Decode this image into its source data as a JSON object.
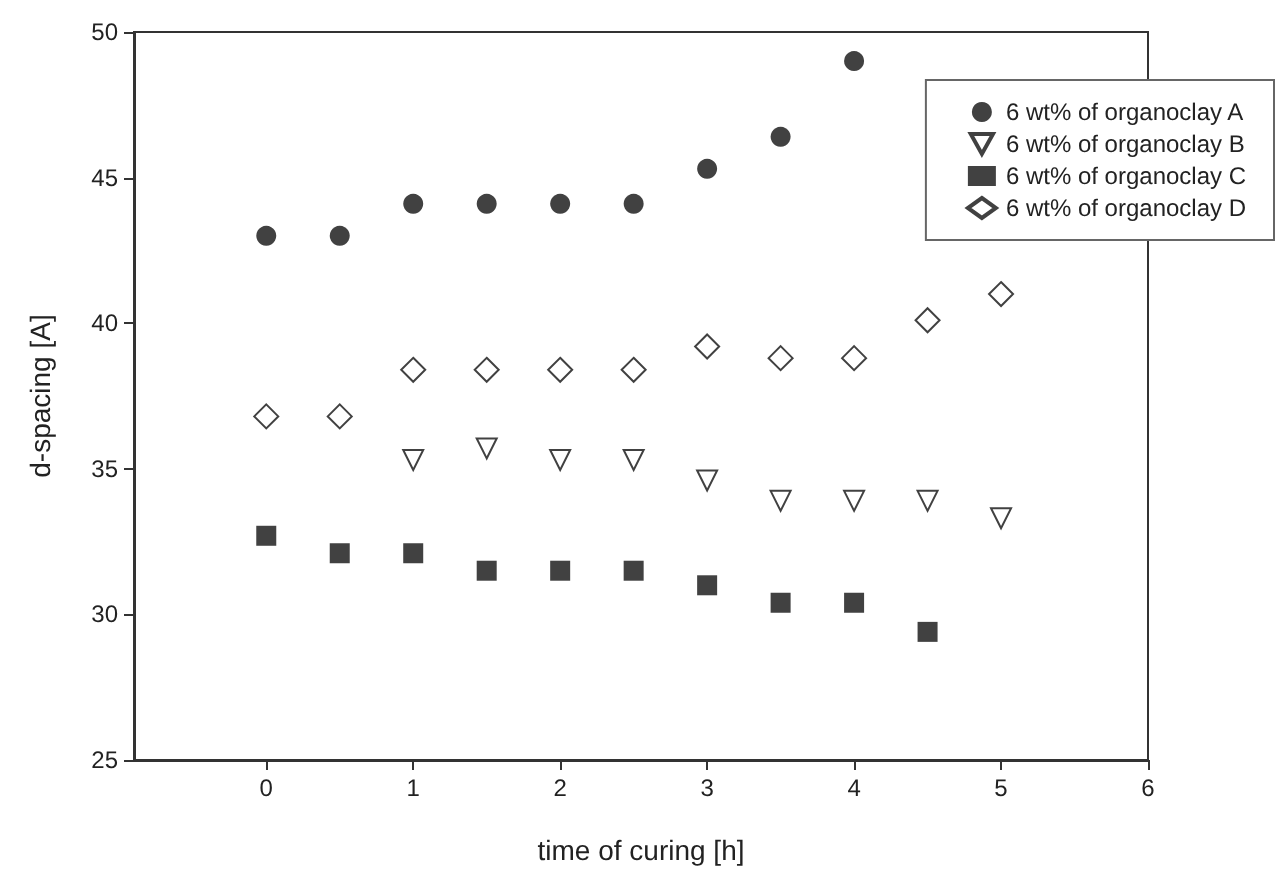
{
  "chart_data": {
    "type": "scatter",
    "xlabel": "time of curing [h]",
    "ylabel": "d-spacing [A]",
    "xlim": [
      -0.9,
      6
    ],
    "xticks": [
      0,
      1,
      2,
      3,
      4,
      5,
      6
    ],
    "ylim": [
      25,
      50
    ],
    "yticks": [
      25,
      30,
      35,
      40,
      45,
      50
    ],
    "grid": false,
    "legend": "top right",
    "series": [
      {
        "name": "6 wt% of organoclay A",
        "color": "#111111",
        "marker": "circle",
        "x": [
          0,
          0.5,
          1,
          1.5,
          2,
          2.5,
          3,
          3.5,
          4
        ],
        "values": [
          43.0,
          43.0,
          44.1,
          44.1,
          44.1,
          44.1,
          45.3,
          46.4,
          49.0
        ]
      },
      {
        "name": "6 wt% of organoclay B",
        "color": "#111111",
        "marker": "triangle",
        "x": [
          1,
          1.5,
          2,
          2.5,
          3,
          3.5,
          4,
          4.5,
          5
        ],
        "values": [
          35.3,
          35.7,
          35.3,
          35.3,
          34.6,
          33.9,
          33.9,
          33.9,
          33.3
        ]
      },
      {
        "name": "6 wt% of organoclay C",
        "color": "#111111",
        "marker": "square",
        "x": [
          0,
          0.5,
          1,
          1.5,
          2,
          2.5,
          3,
          3.5,
          4,
          4.5
        ],
        "values": [
          32.7,
          32.1,
          32.1,
          31.5,
          31.5,
          31.5,
          31.0,
          30.4,
          30.4,
          29.4
        ]
      },
      {
        "name": "6 wt% of organoclay D",
        "color": "#111111",
        "marker": "diamond",
        "x": [
          0,
          0.5,
          1,
          1.5,
          2,
          2.5,
          3,
          3.5,
          4,
          4.5,
          5
        ],
        "values": [
          36.8,
          36.8,
          38.4,
          38.4,
          38.4,
          38.4,
          39.2,
          38.8,
          38.8,
          40.1,
          41.0
        ]
      }
    ]
  }
}
